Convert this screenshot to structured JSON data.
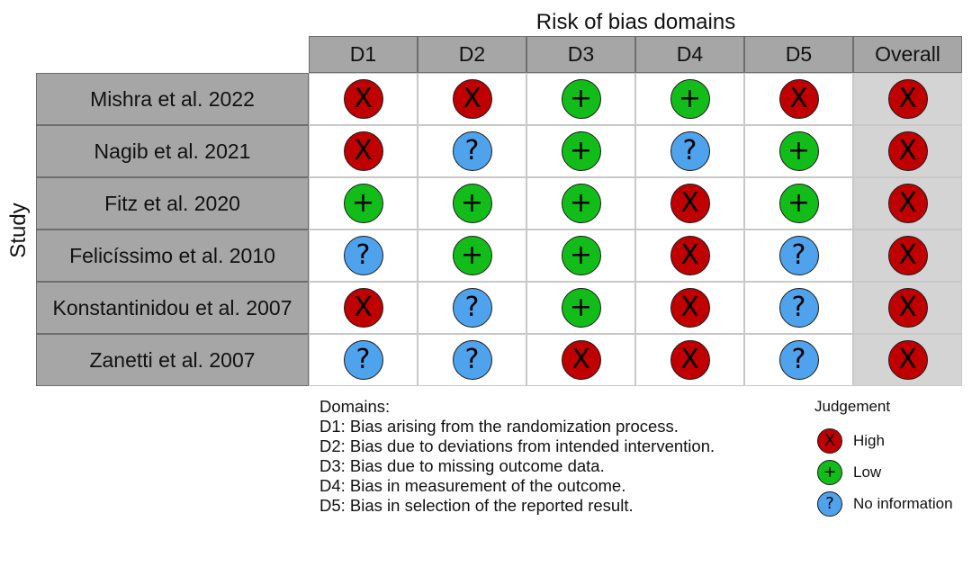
{
  "chart_data": {
    "type": "table",
    "title": "Risk of bias domains",
    "ylabel": "Study",
    "columns": [
      "D1",
      "D2",
      "D3",
      "D4",
      "D5",
      "Overall"
    ],
    "rows": [
      {
        "study": "Mishra et al. 2022",
        "judgements": [
          "High",
          "High",
          "Low",
          "Low",
          "High",
          "High"
        ]
      },
      {
        "study": "Nagib et al. 2021",
        "judgements": [
          "High",
          "No information",
          "Low",
          "No information",
          "Low",
          "High"
        ]
      },
      {
        "study": "Fitz et al. 2020",
        "judgements": [
          "Low",
          "Low",
          "Low",
          "High",
          "Low",
          "High"
        ]
      },
      {
        "study": "Felicíssimo et al. 2010",
        "judgements": [
          "No information",
          "Low",
          "Low",
          "High",
          "No information",
          "High"
        ]
      },
      {
        "study": "Konstantinidou et al. 2007",
        "judgements": [
          "High",
          "No information",
          "Low",
          "High",
          "No information",
          "High"
        ]
      },
      {
        "study": "Zanetti et al. 2007",
        "judgements": [
          "No information",
          "No information",
          "High",
          "High",
          "No information",
          "High"
        ]
      }
    ],
    "domains_title": "Domains:",
    "domains": [
      "D1: Bias arising from the randomization process.",
      "D2: Bias due to deviations from intended intervention.",
      "D3: Bias due to missing outcome data.",
      "D4: Bias in measurement of the outcome.",
      "D5: Bias in selection of the reported result."
    ],
    "legend_title": "Judgement",
    "legend": [
      {
        "label": "High",
        "symbol": "X",
        "color": "#c00000"
      },
      {
        "label": "Low",
        "symbol": "+",
        "color": "#12bd1a"
      },
      {
        "label": "No information",
        "symbol": "?",
        "color": "#4fa3ed"
      }
    ]
  }
}
